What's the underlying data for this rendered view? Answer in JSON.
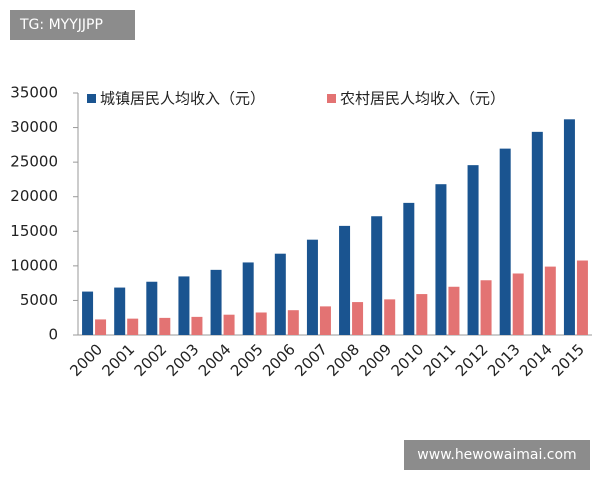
{
  "chart_data": {
    "type": "bar",
    "categories": [
      "2000",
      "2001",
      "2002",
      "2003",
      "2004",
      "2005",
      "2006",
      "2007",
      "2008",
      "2009",
      "2010",
      "2011",
      "2012",
      "2013",
      "2014",
      "2015"
    ],
    "series": [
      {
        "name": "城镇居民人均收入（元）",
        "color": "#1a5490",
        "values": [
          6280,
          6860,
          7703,
          8472,
          9422,
          10493,
          11759,
          13786,
          15781,
          17175,
          19109,
          21810,
          24565,
          26955,
          29381,
          31195
        ]
      },
      {
        "name": "农村居民人均收入（元）",
        "color": "#e37373",
        "values": [
          2253,
          2366,
          2476,
          2622,
          2936,
          3255,
          3587,
          4140,
          4761,
          5153,
          5919,
          6977,
          7917,
          8896,
          9892,
          10772
        ]
      }
    ],
    "ylim": [
      0,
      35000
    ],
    "yticks": [
      0,
      5000,
      10000,
      15000,
      20000,
      25000,
      30000,
      35000
    ],
    "grid": false
  },
  "overlays": [
    "TG: MYYJJPP",
    "www.hewowaimai.com"
  ]
}
